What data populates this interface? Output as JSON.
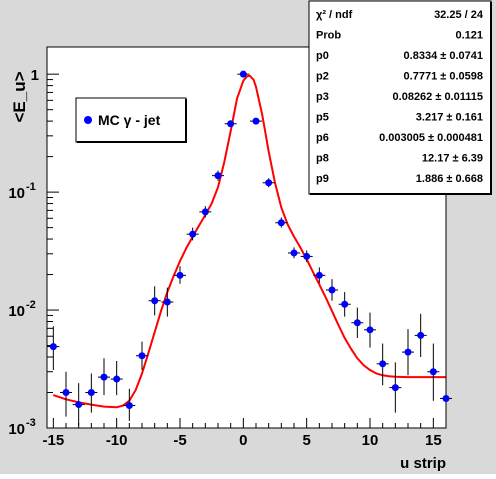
{
  "chart_data": {
    "type": "scatter",
    "title": "",
    "xlabel": "u strip",
    "ylabel": "<E_u>",
    "xlim": [
      -15.5,
      16
    ],
    "ylim": [
      0.001,
      1.7
    ],
    "y_scale": "log",
    "x_ticks": [
      -15,
      -10,
      -5,
      0,
      5,
      10,
      15
    ],
    "x_tick_labels": [
      "-15",
      "-10",
      "-5",
      "0",
      "5",
      "10",
      "15"
    ],
    "y_ticks": [
      0.001,
      0.01,
      0.1,
      1
    ],
    "y_tick_labels": [
      {
        "base": "10",
        "exp": "-3"
      },
      {
        "base": "10",
        "exp": "-2"
      },
      {
        "base": "10",
        "exp": "-1"
      },
      {
        "base": "1",
        "exp": ""
      }
    ],
    "legend": {
      "label": "MC γ - jet",
      "position": "top-left"
    },
    "marker_color": "#0000ff",
    "fit_color": "#ff0000",
    "points": [
      {
        "x": -15,
        "y": 0.0049,
        "lo": 0.0031,
        "hi": 0.0073
      },
      {
        "x": -14,
        "y": 0.002,
        "lo": 0.00125,
        "hi": 0.003
      },
      {
        "x": -13,
        "y": 0.00158,
        "lo": 0.00105,
        "hi": 0.0024
      },
      {
        "x": -12,
        "y": 0.002,
        "lo": 0.00135,
        "hi": 0.0029
      },
      {
        "x": -11,
        "y": 0.0027,
        "lo": 0.0019,
        "hi": 0.0039
      },
      {
        "x": -10,
        "y": 0.0026,
        "lo": 0.0019,
        "hi": 0.0037
      },
      {
        "x": -9,
        "y": 0.00155,
        "lo": 0.00115,
        "hi": 0.00215
      },
      {
        "x": -8,
        "y": 0.0041,
        "lo": 0.0031,
        "hi": 0.0054
      },
      {
        "x": -7,
        "y": 0.012,
        "lo": 0.009,
        "hi": 0.0159
      },
      {
        "x": -6,
        "y": 0.0117,
        "lo": 0.0088,
        "hi": 0.0155
      },
      {
        "x": -5,
        "y": 0.0197,
        "lo": 0.0167,
        "hi": 0.0235
      },
      {
        "x": -4,
        "y": 0.044,
        "lo": 0.039,
        "hi": 0.05
      },
      {
        "x": -3,
        "y": 0.068,
        "lo": 0.061,
        "hi": 0.076
      },
      {
        "x": -2,
        "y": 0.138,
        "lo": 0.125,
        "hi": 0.152
      },
      {
        "x": -1,
        "y": 0.38,
        "lo": 0.36,
        "hi": 0.4
      },
      {
        "x": 0,
        "y": 1.0,
        "lo": 0.98,
        "hi": 1.02
      },
      {
        "x": 1,
        "y": 0.4,
        "lo": 0.38,
        "hi": 0.42
      },
      {
        "x": 2,
        "y": 0.12,
        "lo": 0.11,
        "hi": 0.131
      },
      {
        "x": 3,
        "y": 0.055,
        "lo": 0.05,
        "hi": 0.061
      },
      {
        "x": 4,
        "y": 0.0305,
        "lo": 0.0275,
        "hi": 0.034
      },
      {
        "x": 5,
        "y": 0.0285,
        "lo": 0.0255,
        "hi": 0.032
      },
      {
        "x": 6,
        "y": 0.0197,
        "lo": 0.017,
        "hi": 0.023
      },
      {
        "x": 7,
        "y": 0.0148,
        "lo": 0.012,
        "hi": 0.0183
      },
      {
        "x": 8,
        "y": 0.0112,
        "lo": 0.0088,
        "hi": 0.0142
      },
      {
        "x": 9,
        "y": 0.0078,
        "lo": 0.0058,
        "hi": 0.0105
      },
      {
        "x": 10,
        "y": 0.0068,
        "lo": 0.0048,
        "hi": 0.0095
      },
      {
        "x": 11,
        "y": 0.0035,
        "lo": 0.0023,
        "hi": 0.0052
      },
      {
        "x": 12,
        "y": 0.0022,
        "lo": 0.00135,
        "hi": 0.0036
      },
      {
        "x": 13,
        "y": 0.0044,
        "lo": 0.0028,
        "hi": 0.0069
      },
      {
        "x": 14,
        "y": 0.0061,
        "lo": 0.004,
        "hi": 0.0093
      },
      {
        "x": 15,
        "y": 0.003,
        "lo": 0.0017,
        "hi": 0.0052
      },
      {
        "x": 16,
        "y": 0.00178,
        "lo": 0.0011,
        "hi": 0.0029
      }
    ],
    "fit_curve": {
      "x": [
        -15,
        -14,
        -13,
        -12,
        -11,
        -10,
        -9.5,
        -9,
        -8.5,
        -8,
        -7.5,
        -7,
        -6.5,
        -6,
        -5.5,
        -5,
        -4.5,
        -4,
        -3.5,
        -3,
        -2.5,
        -2,
        -1.5,
        -1,
        -0.5,
        0,
        0.3,
        0.5,
        0.8,
        1,
        1.5,
        2,
        2.5,
        3,
        3.5,
        4,
        4.5,
        5,
        5.5,
        6,
        6.5,
        7,
        7.5,
        8,
        8.5,
        9,
        9.5,
        10,
        10.5,
        11,
        11.5,
        12,
        13,
        14,
        15,
        16
      ],
      "y": [
        0.0019,
        0.00175,
        0.00165,
        0.00158,
        0.00152,
        0.0015,
        0.00155,
        0.0017,
        0.0021,
        0.0029,
        0.0043,
        0.0065,
        0.0098,
        0.0142,
        0.0195,
        0.026,
        0.0335,
        0.042,
        0.052,
        0.064,
        0.08,
        0.11,
        0.18,
        0.33,
        0.62,
        0.88,
        0.96,
        0.97,
        0.9,
        0.78,
        0.45,
        0.22,
        0.12,
        0.074,
        0.053,
        0.042,
        0.034,
        0.027,
        0.021,
        0.0165,
        0.0128,
        0.0098,
        0.0075,
        0.0058,
        0.0047,
        0.0039,
        0.0034,
        0.0031,
        0.0029,
        0.0028,
        0.00275,
        0.00272,
        0.0027,
        0.0027,
        0.0027,
        0.0027
      ]
    }
  },
  "stats": {
    "header": {
      "name": "χ² / ndf",
      "value": "32.25 / 24"
    },
    "rows": [
      {
        "name": "Prob",
        "value": "0.121"
      },
      {
        "name": "p0",
        "value": "0.8334 ± 0.0741"
      },
      {
        "name": "p2",
        "value": "0.7771 ± 0.0598"
      },
      {
        "name": "p3",
        "value": "0.08262 ± 0.01115"
      },
      {
        "name": "p5",
        "value": "3.217 ± 0.161"
      },
      {
        "name": "p6",
        "value": "0.003005 ± 0.000481"
      },
      {
        "name": "p8",
        "value": "12.17 ± 6.39"
      },
      {
        "name": "p9",
        "value": "1.886 ± 0.668"
      }
    ]
  }
}
